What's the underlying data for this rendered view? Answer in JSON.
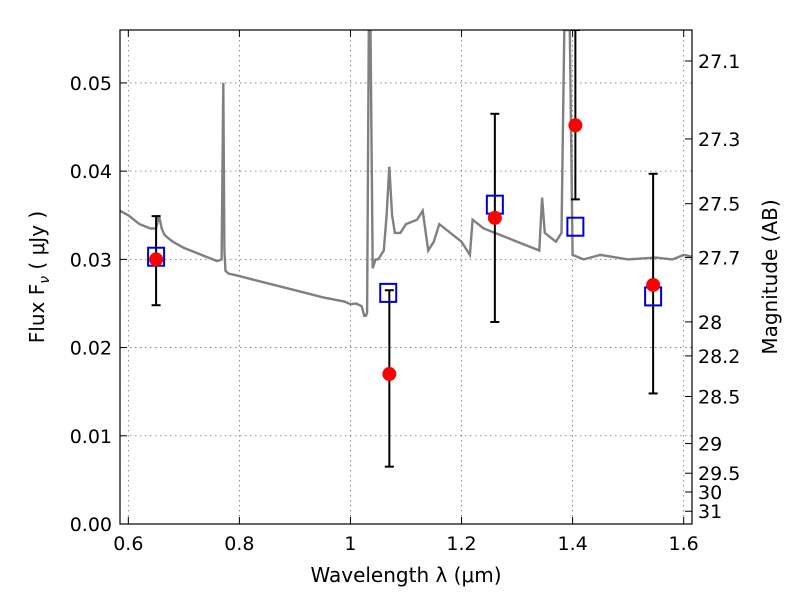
{
  "chart_data": {
    "type": "scatter",
    "title": "",
    "xlabel": "Wavelength  λ (μm)",
    "ylabel": "Flux  F",
    "ylabel_sub": "ν",
    "ylabel_unit": " ( μJy )",
    "y2label": "Magnitude (AB)",
    "xlim": [
      0.585,
      1.615
    ],
    "ylim": [
      0.0,
      0.056
    ],
    "grid": true,
    "x_ticks": [
      0.6,
      0.8,
      1.0,
      1.2,
      1.4,
      1.6
    ],
    "x_tick_labels": [
      "0.6",
      "0.8",
      "1",
      "1.2",
      "1.4",
      "1.6"
    ],
    "y_ticks": [
      0.0,
      0.01,
      0.02,
      0.03,
      0.04,
      0.05
    ],
    "y_tick_labels": [
      "0.00",
      "0.01",
      "0.02",
      "0.03",
      "0.04",
      "0.05"
    ],
    "y2_ticks": [
      27.1,
      27.3,
      27.5,
      27.7,
      28.0,
      28.2,
      28.5,
      29.0,
      29.5,
      30.0,
      31.0
    ],
    "y2_tick_labels": [
      "27.1",
      "27.3",
      "27.5",
      "27.7",
      "28",
      "28.2",
      "28.5",
      "29",
      "29.5",
      "30",
      "31"
    ],
    "series": [
      {
        "kind": "line",
        "color": "#808080",
        "x": [
          0.585,
          0.6,
          0.62,
          0.64,
          0.65,
          0.655,
          0.66,
          0.665,
          0.67,
          0.68,
          0.7,
          0.72,
          0.74,
          0.76,
          0.768,
          0.771,
          0.773,
          0.775,
          0.78,
          0.8,
          0.85,
          0.9,
          0.95,
          0.99,
          1.0,
          1.01,
          1.02,
          1.025,
          1.028,
          1.03,
          1.033,
          1.036,
          1.04,
          1.045,
          1.05,
          1.06,
          1.065,
          1.07,
          1.075,
          1.08,
          1.09,
          1.1,
          1.12,
          1.13,
          1.14,
          1.15,
          1.16,
          1.18,
          1.2,
          1.21,
          1.215,
          1.22,
          1.24,
          1.26,
          1.28,
          1.3,
          1.32,
          1.34,
          1.345,
          1.35,
          1.36,
          1.37,
          1.38,
          1.385,
          1.39,
          1.395,
          1.4,
          1.42,
          1.45,
          1.5,
          1.55,
          1.58,
          1.6,
          1.615
        ],
        "y": [
          0.0355,
          0.035,
          0.034,
          0.0335,
          0.0335,
          0.035,
          0.0335,
          0.0328,
          0.0325,
          0.032,
          0.0313,
          0.0308,
          0.0303,
          0.0298,
          0.03,
          0.05,
          0.031,
          0.0287,
          0.0284,
          0.0281,
          0.0273,
          0.0265,
          0.0257,
          0.0252,
          0.0249,
          0.025,
          0.0247,
          0.0236,
          0.0236,
          0.024,
          0.056,
          0.056,
          0.029,
          0.03,
          0.03,
          0.031,
          0.035,
          0.0405,
          0.035,
          0.033,
          0.033,
          0.034,
          0.0345,
          0.0355,
          0.031,
          0.032,
          0.034,
          0.033,
          0.032,
          0.031,
          0.0305,
          0.0345,
          0.0335,
          0.033,
          0.0325,
          0.032,
          0.0315,
          0.031,
          0.037,
          0.033,
          0.0325,
          0.032,
          0.033,
          0.056,
          0.056,
          0.056,
          0.0305,
          0.03,
          0.0305,
          0.03,
          0.0302,
          0.03,
          0.0305,
          0.0303
        ]
      },
      {
        "kind": "errorbar",
        "marker": "circle",
        "color": "#ff0000",
        "x": [
          0.65,
          1.07,
          1.26,
          1.405,
          1.545
        ],
        "y": [
          0.03,
          0.017,
          0.0347,
          0.0452,
          0.0271
        ],
        "y_low": [
          0.0248,
          0.0065,
          0.0229,
          0.0368,
          0.0148
        ],
        "y_high": [
          0.0349,
          0.0265,
          0.0465,
          0.056,
          0.0397
        ]
      },
      {
        "kind": "scatter",
        "marker": "open-square",
        "color": "#0000cc",
        "x": [
          0.65,
          1.068,
          1.26,
          1.405,
          1.545
        ],
        "y": [
          0.0303,
          0.0262,
          0.0362,
          0.0337,
          0.0258
        ]
      }
    ]
  }
}
